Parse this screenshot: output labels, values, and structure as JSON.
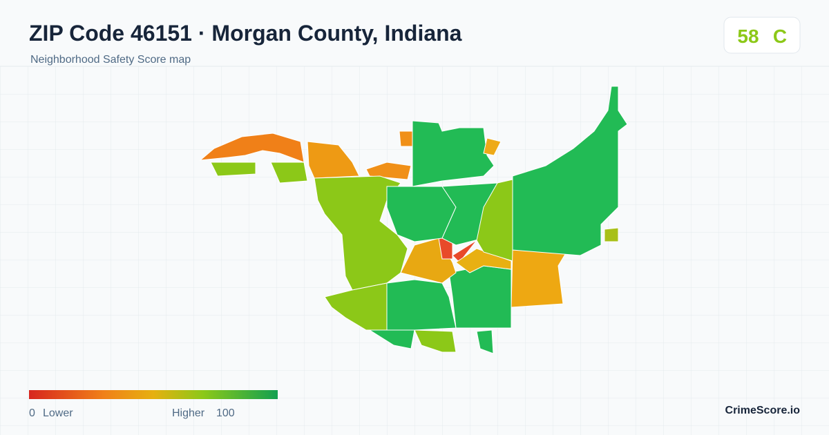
{
  "header": {
    "title": "ZIP Code 46151 · Morgan County, Indiana",
    "subtitle": "Neighborhood Safety Score map"
  },
  "score": {
    "value": "58",
    "grade": "C"
  },
  "legend": {
    "min": "0",
    "min_label": "Lower",
    "max_label": "Higher",
    "max": "100"
  },
  "brand": "CrimeScore.io"
}
